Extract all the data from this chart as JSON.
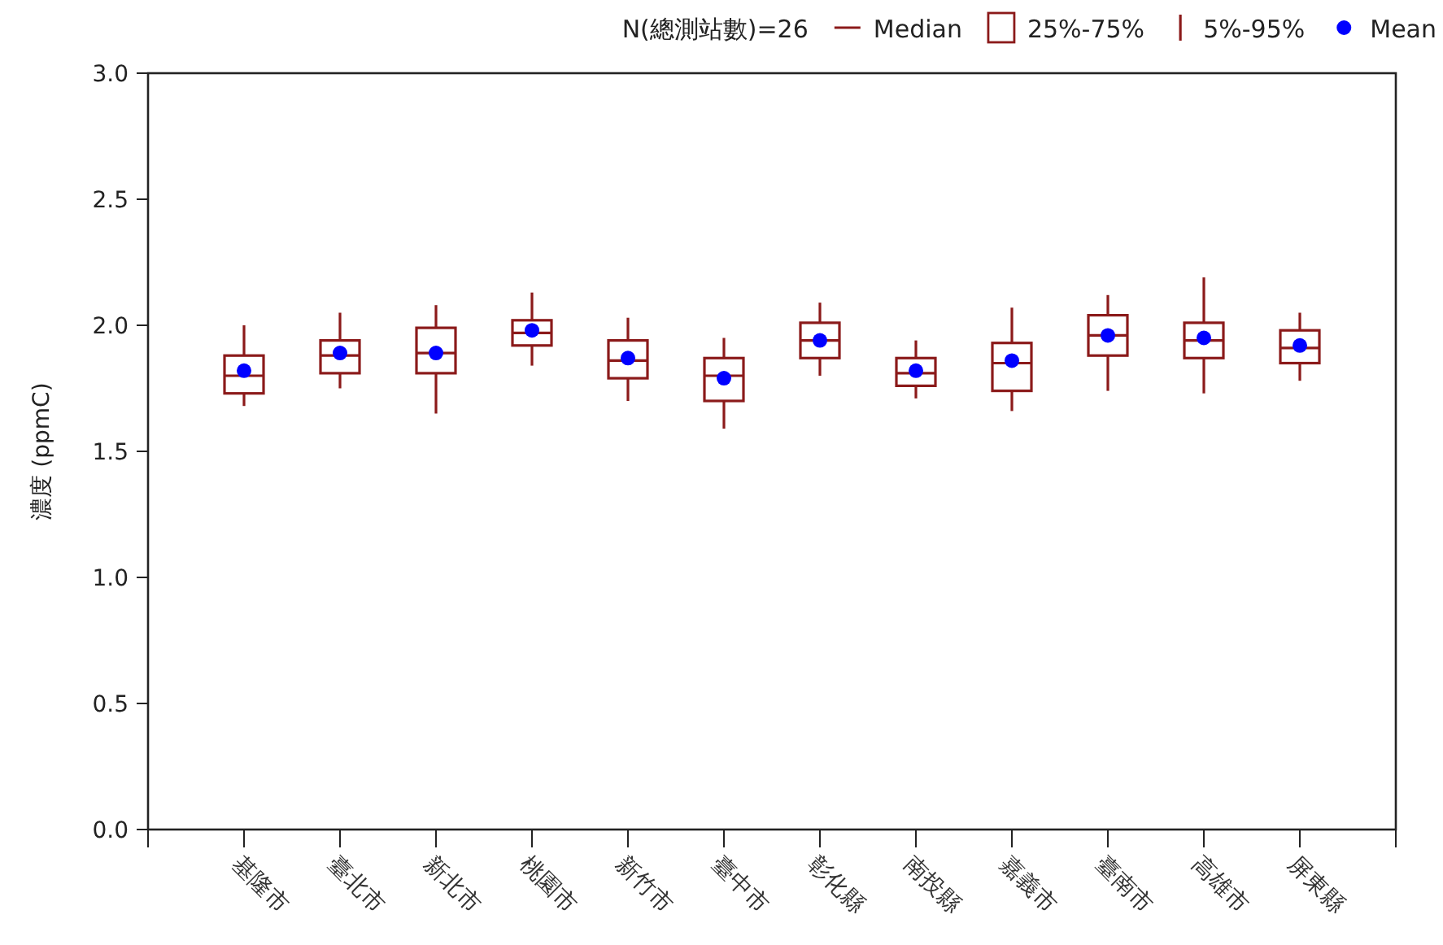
{
  "chart_data": {
    "type": "box",
    "ylabel": "濃度 (ppmC)",
    "legend": "top right",
    "categories": [
      "基隆市",
      "臺北市",
      "新北市",
      "桃園市",
      "新竹市",
      "臺中市",
      "彰化縣",
      "南投縣",
      "嘉義市",
      "臺南市",
      "高雄市",
      "屏東縣"
    ],
    "ylim": [
      0,
      3
    ],
    "yticks": [
      {
        "value": 0,
        "label": "0.0"
      },
      {
        "value": 0.5,
        "label": "0.5"
      },
      {
        "value": 1,
        "label": "1.0"
      },
      {
        "value": 1.5,
        "label": "1.5"
      },
      {
        "value": 2,
        "label": "2.0"
      },
      {
        "value": 2.5,
        "label": "2.5"
      },
      {
        "value": 3,
        "label": "3.0"
      }
    ],
    "annotations": [
      "N(總測站數)=26",
      "Median",
      "25%-75%",
      "5%-95%"
    ],
    "series": [
      {
        "color": "#8b1a1a",
        "boxes": [
          {
            "low": 1.68,
            "q1": 1.73,
            "median": 1.8,
            "q3": 1.88,
            "high": 2.0
          },
          {
            "low": 1.75,
            "q1": 1.81,
            "median": 1.88,
            "q3": 1.94,
            "high": 2.05
          },
          {
            "low": 1.65,
            "q1": 1.81,
            "median": 1.89,
            "q3": 1.99,
            "high": 2.08
          },
          {
            "low": 1.84,
            "q1": 1.92,
            "median": 1.97,
            "q3": 2.02,
            "high": 2.13
          },
          {
            "low": 1.7,
            "q1": 1.79,
            "median": 1.86,
            "q3": 1.94,
            "high": 2.03
          },
          {
            "low": 1.59,
            "q1": 1.7,
            "median": 1.8,
            "q3": 1.87,
            "high": 1.95
          },
          {
            "low": 1.8,
            "q1": 1.87,
            "median": 1.94,
            "q3": 2.01,
            "high": 2.09
          },
          {
            "low": 1.71,
            "q1": 1.76,
            "median": 1.81,
            "q3": 1.87,
            "high": 1.94
          },
          {
            "low": 1.66,
            "q1": 1.74,
            "median": 1.85,
            "q3": 1.93,
            "high": 2.07
          },
          {
            "low": 1.74,
            "q1": 1.88,
            "median": 1.96,
            "q3": 2.04,
            "high": 2.12
          },
          {
            "low": 1.73,
            "q1": 1.87,
            "median": 1.94,
            "q3": 2.01,
            "high": 2.19
          },
          {
            "low": 1.78,
            "q1": 1.85,
            "median": 1.91,
            "q3": 1.98,
            "high": 2.05
          }
        ]
      },
      {
        "type": "scatter",
        "name": "Mean",
        "color": "#0000ff",
        "marker": "circle",
        "values": [
          1.82,
          1.89,
          1.89,
          1.98,
          1.87,
          1.79,
          1.94,
          1.82,
          1.86,
          1.96,
          1.95,
          1.92
        ]
      }
    ]
  }
}
